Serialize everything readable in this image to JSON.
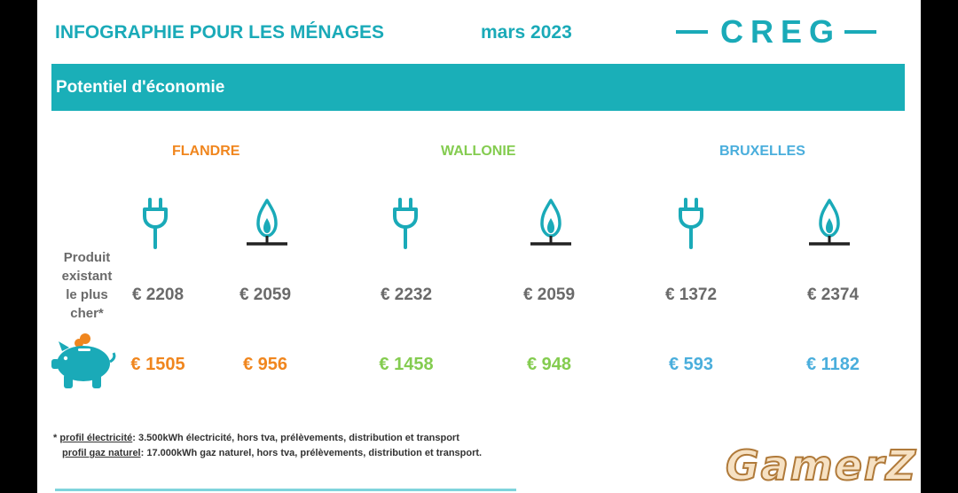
{
  "header": {
    "title": "INFOGRAPHIE POUR LES MÉNAGES",
    "date": "mars 2023",
    "logo": "CREG"
  },
  "banner": {
    "title": "Potentiel d'économie"
  },
  "row_label": {
    "line1": "Produit",
    "line2": "existant",
    "line3": "le plus",
    "line4": "cher*"
  },
  "regions": [
    {
      "name": "FLANDRE",
      "color": "#f0861e",
      "electricity_current": "€ 2208",
      "gas_current": "€ 2059",
      "electricity_savings": "€ 1505",
      "gas_savings": "€ 956"
    },
    {
      "name": "WALLONIE",
      "color": "#84cc50",
      "electricity_current": "€ 2232",
      "gas_current": "€ 2059",
      "electricity_savings": "€ 1458",
      "gas_savings": "€ 948"
    },
    {
      "name": "BRUXELLES",
      "color": "#4aaedc",
      "electricity_current": "€ 1372",
      "gas_current": "€ 2374",
      "electricity_savings": "€ 593",
      "gas_savings": "€ 1182"
    }
  ],
  "icons": {
    "electricity": "plug-icon",
    "gas": "gas-flame-icon",
    "savings": "piggy-bank-icon"
  },
  "colors": {
    "accent": "#1aaab8"
  },
  "footnotes": {
    "electricity_prefix": "* ",
    "electricity_label": "profil électricité",
    "electricity_text": ": 3.500kWh électricité, hors tva, prélèvements, distribution et transport",
    "gas_label": "profil gaz naturel",
    "gas_text": ": 17.000kWh gaz naturel, hors tva, prélèvements, distribution et transport."
  },
  "watermark": "GamerZ"
}
